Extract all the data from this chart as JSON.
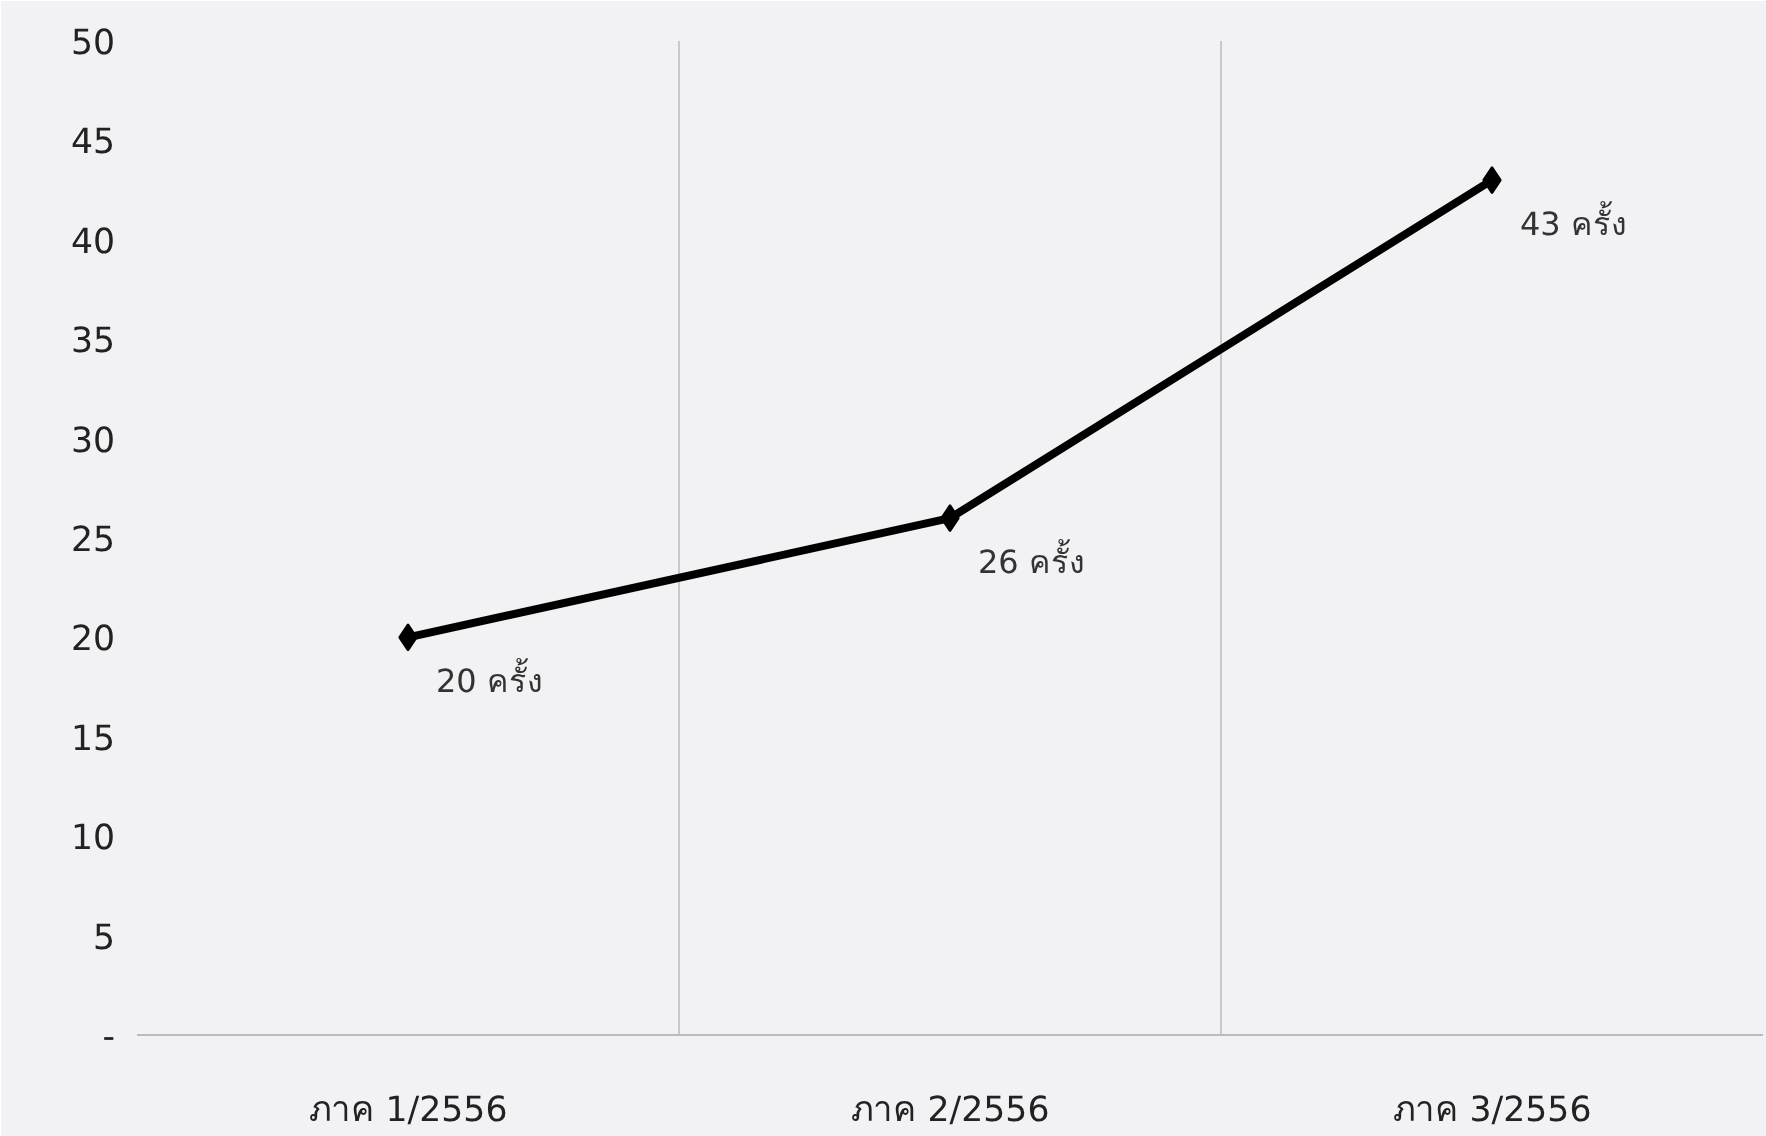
{
  "chart_data": {
    "type": "line",
    "categories": [
      "ภาค 1/2556",
      "ภาค 2/2556",
      "ภาค 3/2556"
    ],
    "series": [
      {
        "color": "#000000",
        "values": [
          20,
          26,
          43
        ],
        "value_labels": [
          "20 ครั้ง",
          "26 ครั้ง",
          "43 ครั้ง"
        ]
      }
    ],
    "ylim": [
      0,
      50
    ],
    "yticks": [
      {
        "value": 0,
        "label": "-"
      },
      5,
      10,
      15,
      20,
      25,
      30,
      35,
      40,
      45,
      50
    ],
    "grid": "x",
    "marker": "diamond",
    "line_style": "solid"
  }
}
